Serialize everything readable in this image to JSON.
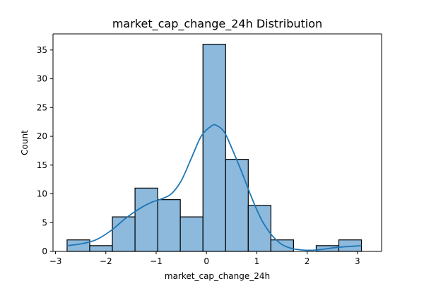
{
  "chart_data": {
    "type": "bar",
    "title": "market_cap_change_24h Distribution",
    "xlabel": "market_cap_change_24h",
    "ylabel": "Count",
    "xlim": [
      -3.05,
      3.48
    ],
    "ylim": [
      0,
      37.8
    ],
    "grid": false,
    "x_ticks": [
      -3,
      -2,
      -1,
      0,
      1,
      2,
      3
    ],
    "y_ticks": [
      0,
      5,
      10,
      15,
      20,
      25,
      30,
      35
    ],
    "bins": [
      {
        "x0": -2.77,
        "x1": -2.32,
        "count": 2
      },
      {
        "x0": -2.32,
        "x1": -1.87,
        "count": 1
      },
      {
        "x0": -1.87,
        "x1": -1.42,
        "count": 6
      },
      {
        "x0": -1.42,
        "x1": -0.97,
        "count": 11
      },
      {
        "x0": -0.97,
        "x1": -0.52,
        "count": 9
      },
      {
        "x0": -0.52,
        "x1": -0.07,
        "count": 6
      },
      {
        "x0": -0.07,
        "x1": 0.38,
        "count": 36
      },
      {
        "x0": 0.38,
        "x1": 0.83,
        "count": 16
      },
      {
        "x0": 0.83,
        "x1": 1.28,
        "count": 8
      },
      {
        "x0": 1.28,
        "x1": 1.73,
        "count": 2
      },
      {
        "x0": 1.73,
        "x1": 2.18,
        "count": 0
      },
      {
        "x0": 2.18,
        "x1": 2.63,
        "count": 1
      },
      {
        "x0": 2.63,
        "x1": 3.08,
        "count": 2
      }
    ],
    "kde": {
      "x": [
        -2.77,
        -2.5,
        -2.2,
        -1.9,
        -1.6,
        -1.3,
        -1.1,
        -0.9,
        -0.7,
        -0.5,
        -0.3,
        -0.1,
        0.1,
        0.2,
        0.35,
        0.5,
        0.7,
        0.9,
        1.1,
        1.3,
        1.5,
        1.7,
        1.9,
        2.1,
        2.3,
        2.6,
        3.08
      ],
      "y": [
        1.0,
        1.3,
        2.0,
        3.6,
        5.8,
        7.6,
        8.5,
        9.1,
        10.0,
        12.3,
        16.2,
        20.1,
        21.8,
        21.9,
        20.8,
        18.0,
        13.8,
        9.3,
        5.4,
        2.8,
        1.2,
        0.5,
        0.25,
        0.2,
        0.35,
        0.7,
        1.0
      ]
    },
    "colors": {
      "bar_fill": "#8cb9dc",
      "bar_edge": "#000000",
      "kde_line": "#1f77b4",
      "axes": "#000000",
      "background": "#ffffff"
    }
  }
}
